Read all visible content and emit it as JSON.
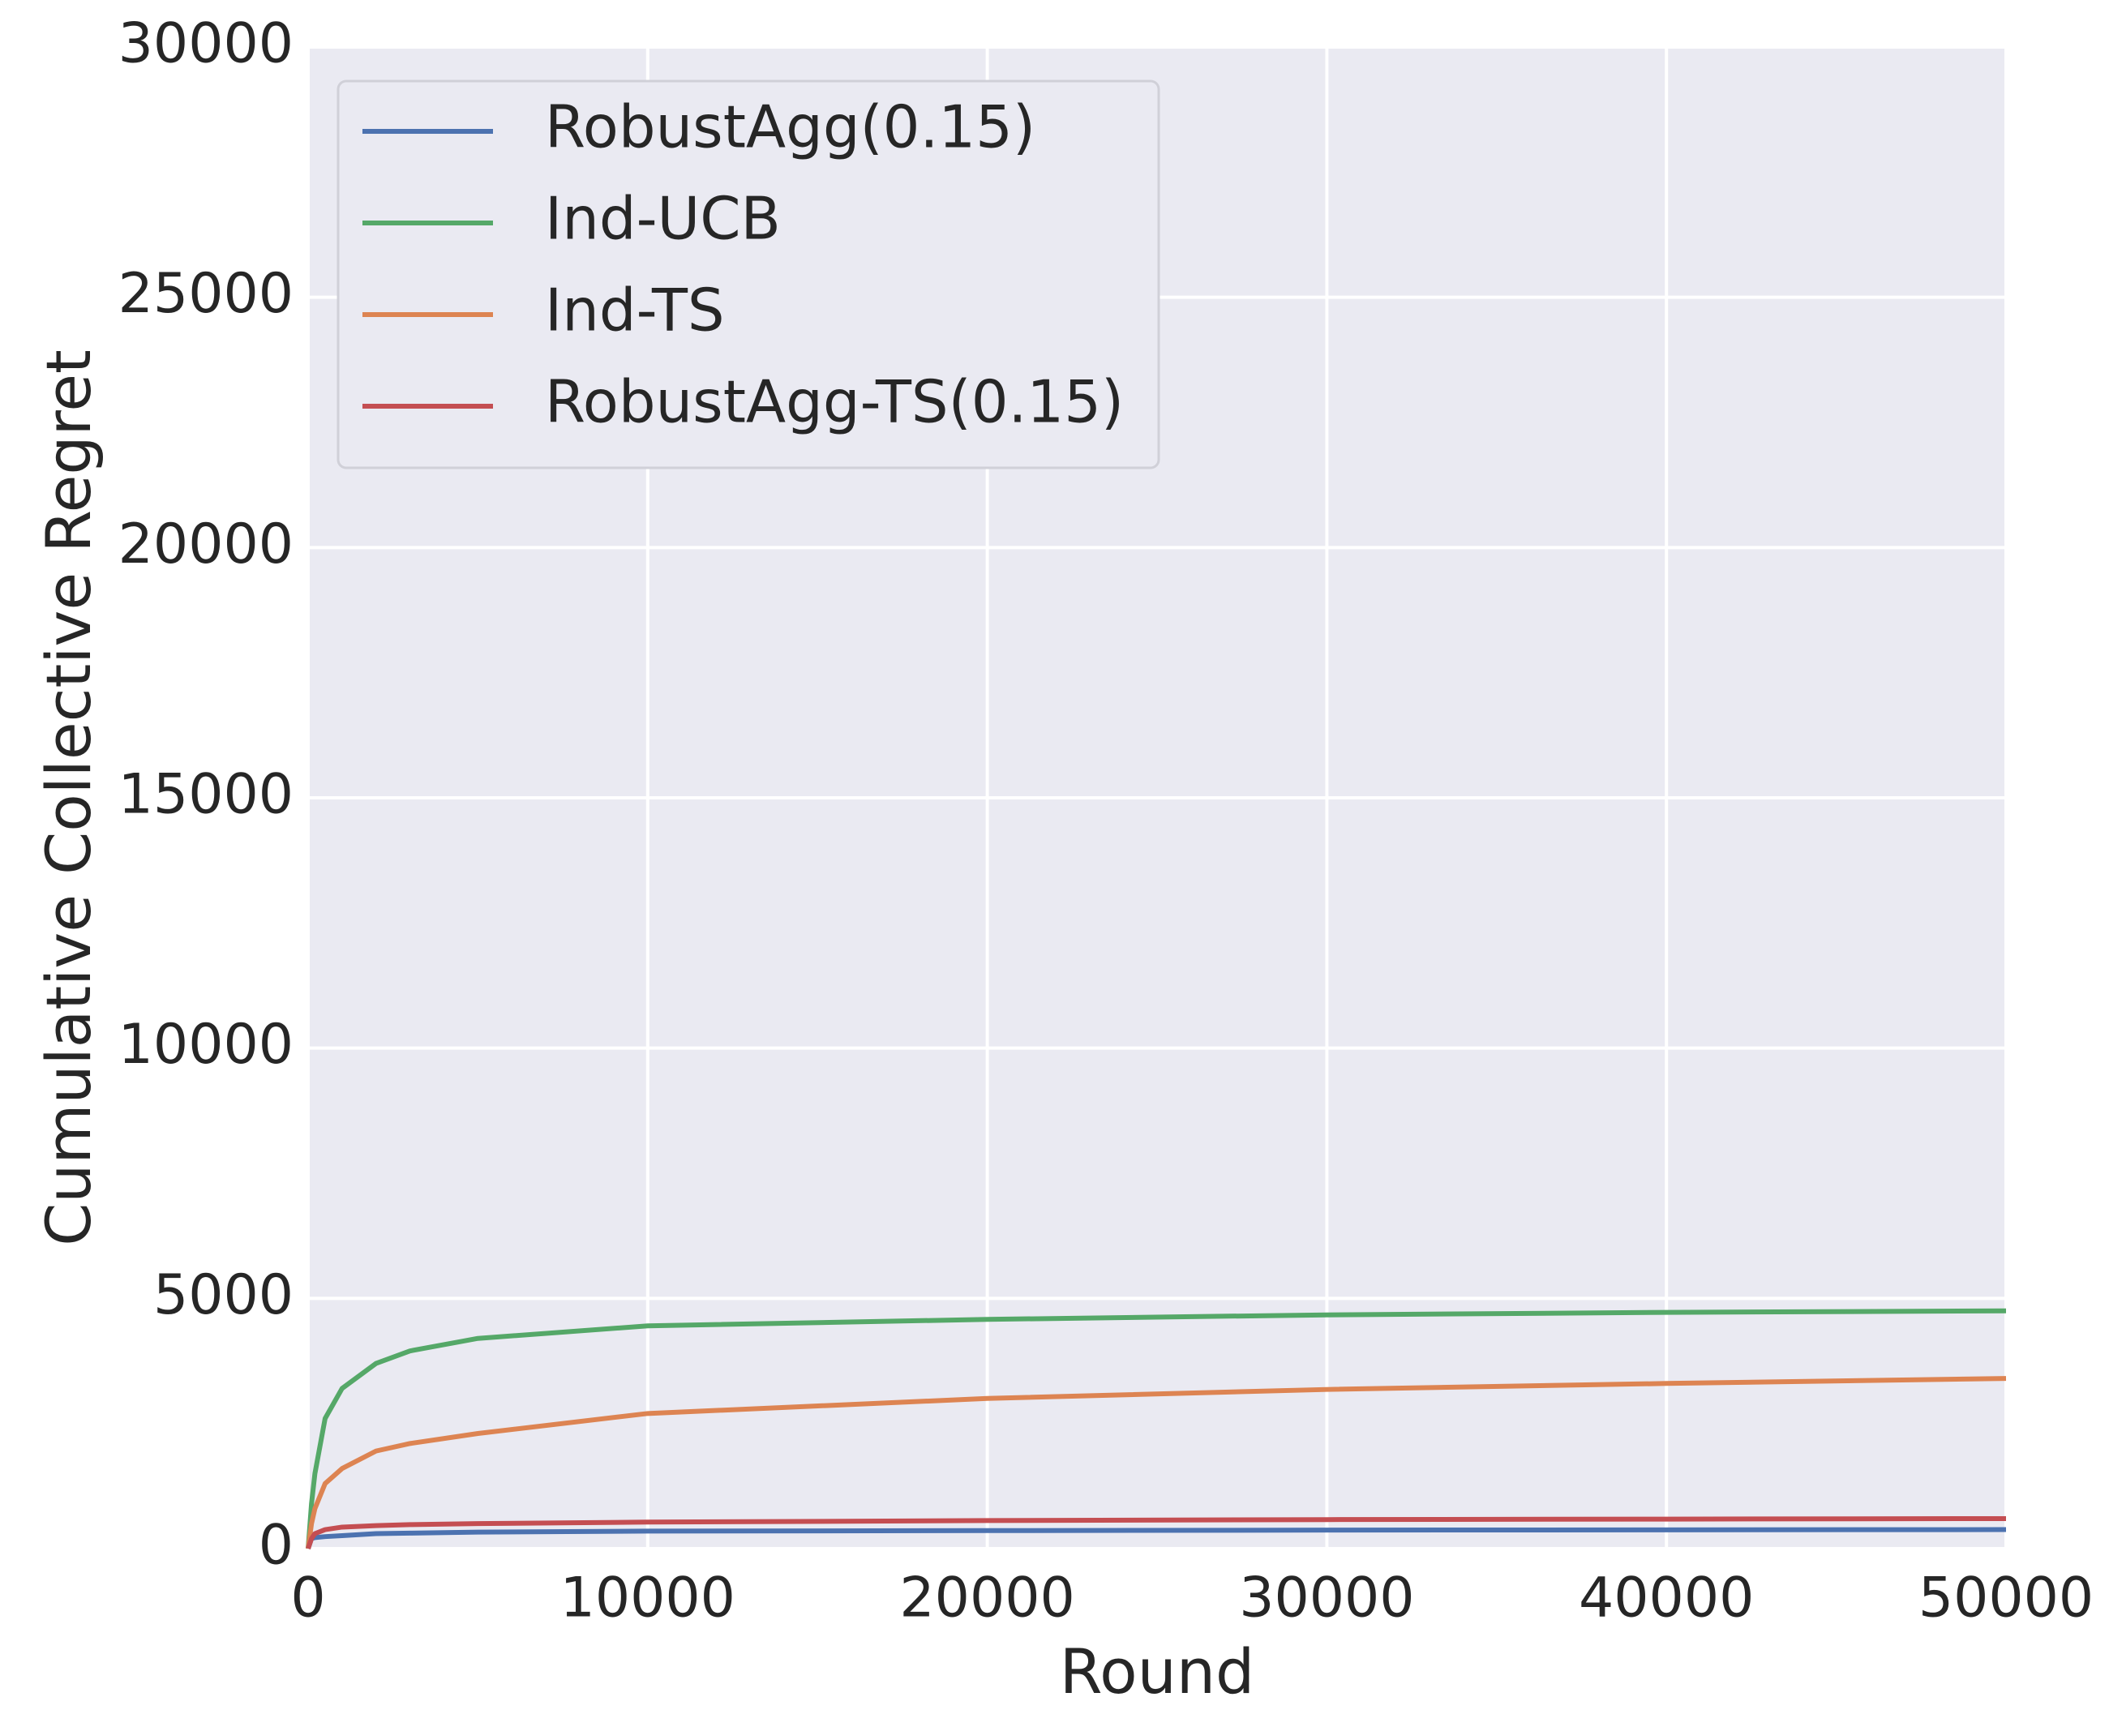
{
  "chart_data": {
    "type": "line",
    "xlabel": "Round",
    "ylabel": "Cumulative Collective Regret",
    "x": [
      0,
      100,
      200,
      500,
      1000,
      2000,
      3000,
      5000,
      10000,
      20000,
      30000,
      40000,
      50000
    ],
    "series": [
      {
        "name": "RobustAgg(0.15)",
        "color": "#4c72b0",
        "values": [
          0,
          200,
          220,
          240,
          260,
          300,
          310,
          330,
          350,
          360,
          370,
          375,
          380
        ]
      },
      {
        "name": "Ind-UCB",
        "color": "#55a868",
        "values": [
          0,
          900,
          1500,
          2600,
          3200,
          3700,
          3950,
          4200,
          4450,
          4580,
          4670,
          4720,
          4750
        ]
      },
      {
        "name": "Ind-TS",
        "color": "#dd8452",
        "values": [
          0,
          500,
          800,
          1300,
          1600,
          1950,
          2100,
          2300,
          2700,
          3000,
          3180,
          3300,
          3400
        ]
      },
      {
        "name": "RobustAgg-TS(0.15)",
        "color": "#c44e52",
        "values": [
          0,
          200,
          300,
          380,
          430,
          460,
          480,
          500,
          530,
          560,
          580,
          590,
          600
        ]
      }
    ],
    "xlim": [
      0,
      50000
    ],
    "ylim": [
      0,
      30000
    ],
    "xticks": [
      0,
      10000,
      20000,
      30000,
      40000,
      50000
    ],
    "yticks": [
      0,
      5000,
      10000,
      15000,
      20000,
      25000,
      30000
    ],
    "grid": true,
    "legend": "upper left"
  }
}
